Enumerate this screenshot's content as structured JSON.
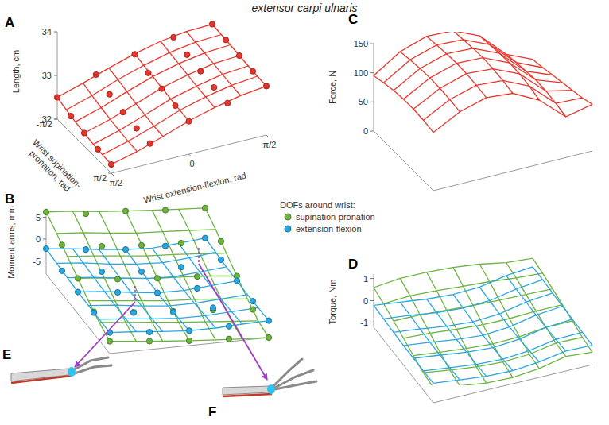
{
  "title": "extensor carpi ulnaris",
  "images": [
    {
      "label": "E"
    },
    {
      "label": "F"
    }
  ],
  "chart_data": [
    {
      "type": "surface",
      "label": "A",
      "zlabel": "Length, cm",
      "xlabel": "Wrist extension-flexion, rad",
      "ylabel": "Wrist supination-pronation, rad",
      "xlim": [
        -1.5708,
        1.5708
      ],
      "ylim": [
        -1.5708,
        1.5708
      ],
      "zlim": [
        32,
        34
      ],
      "zticks": [
        32,
        33,
        34
      ],
      "xticks": [
        {
          "value": -1.5708,
          "label": "-π/2"
        },
        0,
        {
          "value": 1.5708,
          "label": "π/2"
        }
      ],
      "yticks": [
        {
          "value": -1.5708,
          "label": "-π/2"
        },
        {
          "value": 1.5708,
          "label": "π/2"
        }
      ],
      "marker": "circle",
      "x": [
        -1.5708,
        -1.0472,
        -0.5236,
        0,
        0.5236,
        1.0472,
        1.5708
      ],
      "y": [
        -1.5708,
        -1.0472,
        -0.5236,
        0,
        0.5236,
        1.0472,
        1.5708
      ],
      "series": [
        {
          "color": "#e8352b",
          "values": [
            [
              32.5,
              32.68,
              32.88,
              33.06,
              33.2,
              33.28,
              33.3
            ],
            [
              32.42,
              32.6,
              32.82,
              33.0,
              33.15,
              33.24,
              33.27
            ],
            [
              32.35,
              32.53,
              32.75,
              32.95,
              33.1,
              33.2,
              33.24
            ],
            [
              32.3,
              32.47,
              32.68,
              32.9,
              33.05,
              33.16,
              33.2
            ],
            [
              32.25,
              32.42,
              32.63,
              32.85,
              33.0,
              33.12,
              33.17
            ],
            [
              32.22,
              32.38,
              32.58,
              32.8,
              32.96,
              33.08,
              33.14
            ],
            [
              32.2,
              32.35,
              32.55,
              32.76,
              32.92,
              33.05,
              33.12
            ]
          ],
          "markers": {
            "x": [
              -1.5708,
              -0.7854,
              0,
              0.7854,
              1.5708
            ],
            "y": [
              -1.5708,
              -0.7854,
              0,
              0.7854,
              1.5708
            ],
            "values": [
              [
                32.5,
                32.8,
                33.05,
                33.22,
                33.3
              ],
              [
                32.38,
                32.66,
                32.93,
                33.13,
                33.25
              ],
              [
                32.3,
                32.56,
                32.88,
                33.06,
                33.2
              ],
              [
                32.24,
                32.5,
                32.8,
                33.0,
                33.15
              ],
              [
                32.2,
                32.46,
                32.75,
                32.95,
                33.12
              ]
            ]
          }
        }
      ]
    },
    {
      "type": "surface",
      "label": "B",
      "zlabel": "Moment arms, mm",
      "legend": "right",
      "legend_title": "DOFs around wrist:",
      "xlim": [
        -1.5708,
        1.5708
      ],
      "ylim": [
        -1.5708,
        1.5708
      ],
      "zlim": [
        -8,
        7
      ],
      "zticks": [
        -5,
        0,
        5
      ],
      "marker": "circle",
      "x": [
        -1.5708,
        -1.0472,
        -0.5236,
        0,
        0.5236,
        1.0472,
        1.5708
      ],
      "y": [
        -1.5708,
        -1.0472,
        -0.5236,
        0,
        0.5236,
        1.0472,
        1.5708
      ],
      "series": [
        {
          "name": "supination-pronation",
          "color": "#6cb33f",
          "values": [
            [
              6.2,
              5.8,
              5.1,
              4.6,
              4.2,
              3.8,
              3.5
            ],
            [
              4.3,
              3.9,
              3.2,
              2.6,
              2.3,
              2.0,
              1.6
            ],
            [
              2.1,
              1.6,
              1.0,
              0.4,
              0.1,
              -0.3,
              -0.8
            ],
            [
              0.1,
              -0.4,
              -1.1,
              -1.7,
              -2.0,
              -2.4,
              -3.0
            ],
            [
              -2.0,
              -2.6,
              -3.2,
              -3.8,
              -4.1,
              -4.6,
              -5.2
            ],
            [
              -3.9,
              -4.5,
              -5.1,
              -5.7,
              -6.2,
              -6.7,
              -7.2
            ],
            [
              -5.2,
              -5.8,
              -6.4,
              -6.9,
              -7.3,
              -7.7,
              -8.0
            ]
          ],
          "markers": {
            "x": [
              -1.5708,
              -0.7854,
              0,
              0.7854,
              1.5708
            ],
            "y": [
              -1.5708,
              -0.7854,
              0,
              0.7854,
              1.5708
            ],
            "values": [
              [
                6.2,
                4.9,
                4.6,
                3.9,
                3.5
              ],
              [
                3.2,
                2.0,
                1.3,
                0.9,
                0.4
              ],
              [
                0.1,
                -1.0,
                -1.7,
                -2.2,
                -3.0
              ],
              [
                -3.0,
                -4.0,
                -4.7,
                -5.3,
                -6.1
              ],
              [
                -5.2,
                -6.1,
                -6.9,
                -7.4,
                -8.0
              ]
            ]
          }
        },
        {
          "name": "extension-flexion",
          "color": "#2aa7df",
          "values": [
            [
              -2.2,
              -2.8,
              -3.6,
              -4.2,
              -4.5,
              -4.0,
              -3.4
            ],
            [
              -2.5,
              -3.0,
              -3.9,
              -4.5,
              -4.8,
              -4.3,
              -3.6
            ],
            [
              -2.8,
              -3.3,
              -4.1,
              -4.8,
              -5.0,
              -4.5,
              -3.9
            ],
            [
              -3.0,
              -3.5,
              -4.3,
              -5.0,
              -5.1,
              -4.6,
              -4.1
            ],
            [
              -3.1,
              -3.6,
              -4.4,
              -5.0,
              -5.0,
              -4.6,
              -4.2
            ],
            [
              -3.2,
              -3.7,
              -4.3,
              -4.8,
              -4.8,
              -4.5,
              -4.2
            ],
            [
              -3.2,
              -3.6,
              -4.2,
              -4.6,
              -4.6,
              -4.3,
              -4.1
            ]
          ],
          "markers": {
            "x": [
              -1.5708,
              -0.7854,
              0,
              0.7854,
              1.5708
            ],
            "y": [
              -1.5708,
              -0.7854,
              0,
              0.7854,
              1.5708
            ],
            "values": [
              [
                -2.2,
                -3.3,
                -4.2,
                -4.3,
                -3.4
              ],
              [
                -2.7,
                -3.8,
                -4.7,
                -4.6,
                -3.8
              ],
              [
                -3.0,
                -4.0,
                -5.0,
                -4.9,
                -4.1
              ],
              [
                -3.2,
                -4.1,
                -4.9,
                -4.8,
                -4.2
              ],
              [
                -3.2,
                -4.0,
                -4.6,
                -4.5,
                -4.1
              ]
            ]
          }
        }
      ]
    },
    {
      "type": "surface",
      "label": "C",
      "zlabel": "Force, N",
      "xlim": [
        -1.5708,
        1.5708
      ],
      "ylim": [
        -1.5708,
        1.5708
      ],
      "zlim": [
        0,
        150
      ],
      "zticks": [
        0,
        50,
        100,
        150
      ],
      "x": [
        -1.5708,
        -1.0472,
        -0.5236,
        0,
        0.5236,
        1.0472,
        1.5708
      ],
      "y": [
        -1.5708,
        -1.0472,
        -0.5236,
        0,
        0.5236,
        1.0472,
        1.5708
      ],
      "series": [
        {
          "color": "#e8352b",
          "values": [
            [
              95,
              125,
              140,
              138,
              118,
              75,
              55
            ],
            [
              100,
              128,
              142,
              140,
              120,
              78,
              58
            ],
            [
              104,
              130,
              144,
              142,
              122,
              80,
              62
            ],
            [
              106,
              131,
              145,
              143,
              123,
              82,
              66
            ],
            [
              106,
              130,
              144,
              141,
              121,
              80,
              70
            ],
            [
              104,
              128,
              141,
              138,
              117,
              76,
              74
            ],
            [
              100,
              124,
              137,
              133,
              110,
              70,
              80
            ]
          ]
        }
      ]
    },
    {
      "type": "surface",
      "label": "D",
      "zlabel": "Torque, Nm",
      "xlim": [
        -1.5708,
        1.5708
      ],
      "ylim": [
        -1.5708,
        1.5708
      ],
      "zlim": [
        -1.2,
        1.2
      ],
      "zticks": [
        -1,
        0,
        1
      ],
      "x": [
        -1.5708,
        -1.0472,
        -0.5236,
        0,
        0.5236,
        1.0472,
        1.5708
      ],
      "y": [
        -1.5708,
        -1.0472,
        -0.5236,
        0,
        0.5236,
        1.0472,
        1.5708
      ],
      "series": [
        {
          "color": "#6cb33f",
          "values": [
            [
              0.59,
              0.72,
              0.71,
              0.64,
              0.5,
              0.28,
              0.19
            ],
            [
              0.43,
              0.5,
              0.45,
              0.36,
              0.28,
              0.16,
              0.09
            ],
            [
              0.22,
              0.21,
              0.14,
              0.06,
              0.01,
              -0.02,
              -0.05
            ],
            [
              0.01,
              -0.05,
              -0.16,
              -0.24,
              -0.25,
              -0.2,
              -0.2
            ],
            [
              -0.21,
              -0.34,
              -0.46,
              -0.54,
              -0.5,
              -0.37,
              -0.36
            ],
            [
              -0.41,
              -0.58,
              -0.72,
              -0.79,
              -0.73,
              -0.51,
              -0.53
            ],
            [
              -0.52,
              -0.72,
              -0.88,
              -0.92,
              -0.8,
              -0.54,
              -0.64
            ]
          ]
        },
        {
          "color": "#2aa7df",
          "values": [
            [
              -0.21,
              -0.35,
              -0.5,
              -0.58,
              -0.53,
              -0.3,
              -0.19
            ],
            [
              -0.25,
              -0.38,
              -0.55,
              -0.63,
              -0.58,
              -0.34,
              -0.21
            ],
            [
              -0.29,
              -0.43,
              -0.59,
              -0.68,
              -0.61,
              -0.36,
              -0.24
            ],
            [
              -0.32,
              -0.46,
              -0.62,
              -0.72,
              -0.63,
              -0.38,
              -0.27
            ],
            [
              -0.33,
              -0.47,
              -0.63,
              -0.71,
              -0.61,
              -0.37,
              -0.29
            ],
            [
              -0.33,
              -0.47,
              -0.61,
              -0.66,
              -0.56,
              -0.34,
              -0.31
            ],
            [
              -0.32,
              -0.45,
              -0.58,
              -0.61,
              -0.51,
              -0.3,
              -0.33
            ]
          ]
        }
      ]
    }
  ]
}
